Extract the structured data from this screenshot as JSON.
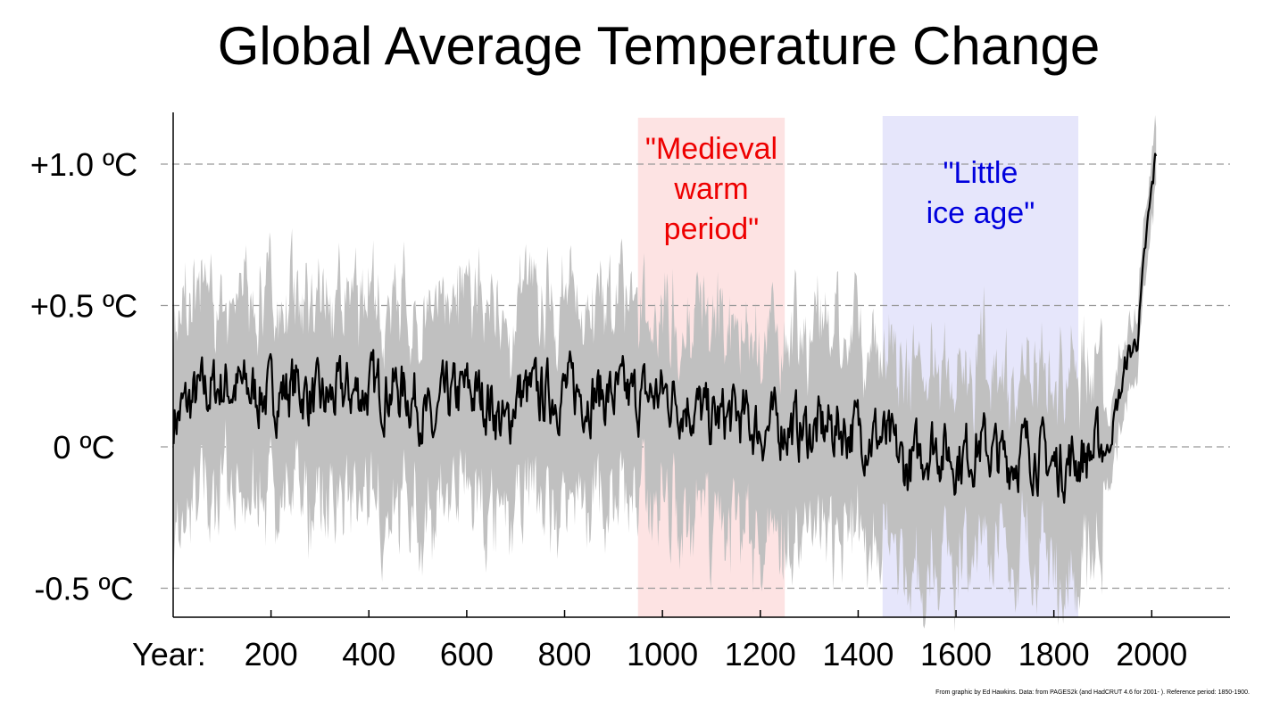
{
  "chart_data": {
    "type": "area",
    "title": "Global Average Temperature Change",
    "xlabel": "Year:",
    "ylabel": "",
    "xlim": [
      1,
      2160
    ],
    "ylim": [
      -0.6,
      1.2
    ],
    "y_ticks": [
      1.0,
      0.5,
      0,
      -0.5
    ],
    "y_tick_labels": [
      "+1.0 ºC",
      "+0.5 ºC",
      "0 ºC",
      "-0.5 ºC"
    ],
    "x_ticks": [
      200,
      400,
      600,
      800,
      1000,
      1200,
      1400,
      1600,
      1800,
      2000
    ],
    "x_tick_labels": [
      "200",
      "400",
      "600",
      "800",
      "1000",
      "1200",
      "1400",
      "1600",
      "1800",
      "2000"
    ],
    "grid": "dashed horizontal at y ticks",
    "colors": {
      "line": "#000000",
      "band": "#c0c0c0",
      "medieval_shade": "#fde3e3",
      "medieval_text": "#ee0000",
      "ice_shade": "#e6e6fb",
      "ice_text": "#0000dd",
      "grid": "#999999"
    },
    "annotations": [
      {
        "label_lines": [
          "\"Medieval",
          "warm",
          "period\""
        ],
        "x_start": 950,
        "x_end": 1250,
        "color_key": "medieval"
      },
      {
        "label_lines": [
          "\"Little",
          "ice age\""
        ],
        "x_start": 1450,
        "x_end": 1850,
        "color_key": "ice"
      }
    ],
    "series": [
      {
        "x": [
          1,
          50,
          100,
          150,
          200,
          250,
          300,
          350,
          400,
          450,
          500,
          530,
          550,
          600,
          650,
          680,
          700,
          750,
          800,
          850,
          900,
          950,
          1000,
          1050,
          1100,
          1150,
          1200,
          1250,
          1300,
          1350,
          1400,
          1450,
          1500,
          1550,
          1600,
          1650,
          1700,
          1750,
          1800,
          1850,
          1880,
          1900,
          1910,
          1920,
          1940,
          1950,
          1960,
          1970,
          1980,
          1990,
          2000,
          2010
        ],
        "y": [
          0.1,
          0.18,
          0.22,
          0.2,
          0.18,
          0.22,
          0.15,
          0.19,
          0.2,
          0.21,
          0.17,
          0.04,
          0.15,
          0.2,
          0.16,
          0.05,
          0.19,
          0.18,
          0.2,
          0.19,
          0.18,
          0.17,
          0.19,
          0.16,
          0.09,
          0.11,
          0.06,
          0.08,
          0.05,
          0.07,
          0.06,
          0.03,
          -0.08,
          0.02,
          -0.04,
          0.01,
          -0.05,
          0.0,
          -0.07,
          -0.04,
          -0.02,
          0.02,
          -0.02,
          0.08,
          0.22,
          0.32,
          0.34,
          0.38,
          0.55,
          0.75,
          0.9,
          1.05
        ]
      }
    ],
    "band_lower_offset": -0.38,
    "band_upper_offset": 0.32,
    "credit": "From graphic by Ed Hawkins. Data: from PAGES2k (and HadCRUT 4.6 for 2001- ). Reference period: 1850-1900."
  }
}
